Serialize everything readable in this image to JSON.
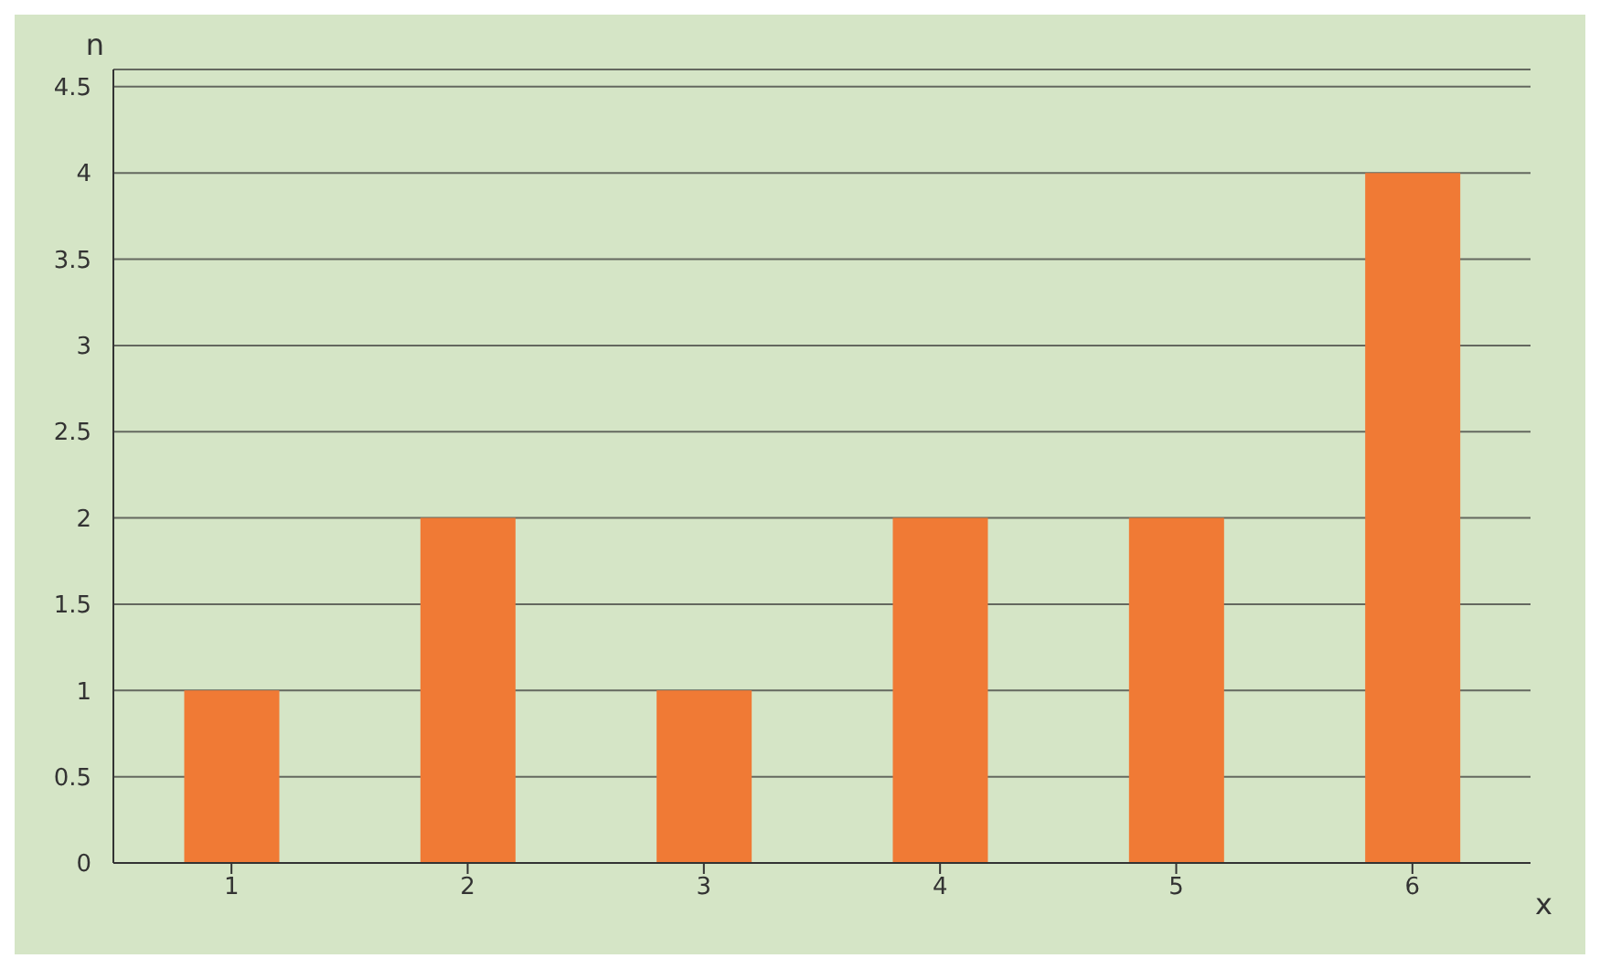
{
  "chart_data": {
    "type": "bar",
    "xlabel": "x",
    "ylabel": "n",
    "categories": [
      "1",
      "2",
      "3",
      "4",
      "5",
      "6"
    ],
    "values": [
      1,
      2,
      1,
      2,
      2,
      4
    ],
    "color": "#f07a35",
    "ylim": [
      0,
      4.6
    ],
    "yticks": [
      0,
      0.5,
      1,
      1.5,
      2,
      2.5,
      3,
      3.5,
      4,
      4.5
    ],
    "grid": "y"
  }
}
